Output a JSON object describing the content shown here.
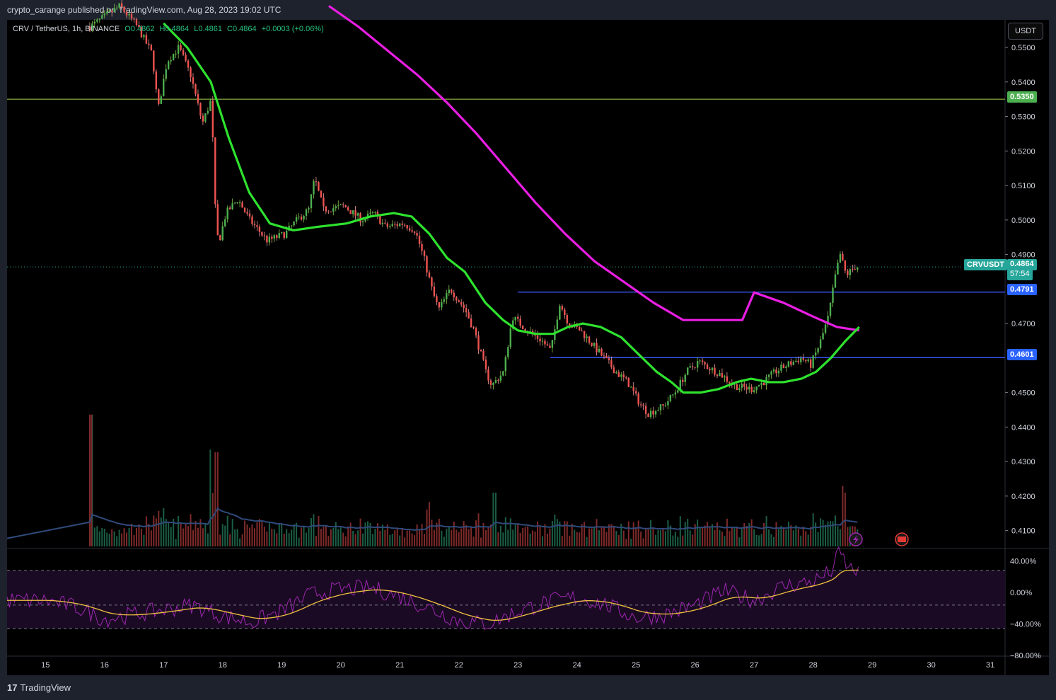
{
  "header": {
    "publisher_line": "crypto_carange published on TradingView.com, Aug 28, 2023 19:02 UTC"
  },
  "legend": {
    "symbol": "CRV / TetherUS, 1h, BINANCE",
    "open": "O0.4862",
    "high": "H0.4864",
    "low": "L0.4861",
    "close": "C0.4864",
    "change": "+0.0003 (+0.06%)"
  },
  "currency_button": "USDT",
  "branding": {
    "logo_text": "TradingView"
  },
  "price_tags": {
    "symbol_label": "CRVUSDT",
    "last_price": "0.4864",
    "countdown": "57:54",
    "level_top": "0.5350",
    "level_mid": "0.4791",
    "level_low": "0.4601"
  },
  "chart_data": [
    {
      "type": "candlestick",
      "symbol": "CRV / TetherUS",
      "interval": "1h",
      "exchange": "BINANCE",
      "x_ticks": [
        "15",
        "16",
        "17",
        "18",
        "19",
        "20",
        "21",
        "22",
        "23",
        "24",
        "25",
        "26",
        "27",
        "28",
        "29",
        "30",
        "31"
      ],
      "x_range_days": [
        14.35,
        31.25
      ],
      "ylim": [
        0.405,
        0.558
      ],
      "y_ticks": [
        "0.5500",
        "0.5400",
        "0.5300",
        "0.5200",
        "0.5100",
        "0.5000",
        "0.4900",
        "0.4700",
        "0.4500",
        "0.4400",
        "0.4300",
        "0.4200",
        "0.4100"
      ],
      "price_path": [
        [
          15.8,
          0.556
        ],
        [
          16.3,
          0.562
        ],
        [
          16.6,
          0.556
        ],
        [
          16.85,
          0.548
        ],
        [
          16.95,
          0.532
        ],
        [
          17.1,
          0.546
        ],
        [
          17.3,
          0.55
        ],
        [
          17.5,
          0.542
        ],
        [
          17.7,
          0.528
        ],
        [
          17.85,
          0.535
        ],
        [
          17.92,
          0.502
        ],
        [
          17.97,
          0.493
        ],
        [
          18.1,
          0.502
        ],
        [
          18.3,
          0.506
        ],
        [
          18.5,
          0.5
        ],
        [
          18.8,
          0.494
        ],
        [
          19.1,
          0.496
        ],
        [
          19.3,
          0.5
        ],
        [
          19.5,
          0.503
        ],
        [
          19.6,
          0.512
        ],
        [
          19.75,
          0.503
        ],
        [
          20.1,
          0.504
        ],
        [
          20.4,
          0.5
        ],
        [
          20.6,
          0.502
        ],
        [
          20.8,
          0.498
        ],
        [
          21.1,
          0.499
        ],
        [
          21.3,
          0.497
        ],
        [
          21.45,
          0.489
        ],
        [
          21.6,
          0.479
        ],
        [
          21.7,
          0.474
        ],
        [
          21.9,
          0.48
        ],
        [
          22.15,
          0.474
        ],
        [
          22.3,
          0.468
        ],
        [
          22.5,
          0.456
        ],
        [
          22.6,
          0.452
        ],
        [
          22.8,
          0.456
        ],
        [
          22.95,
          0.472
        ],
        [
          23.2,
          0.468
        ],
        [
          23.45,
          0.465
        ],
        [
          23.6,
          0.462
        ],
        [
          23.75,
          0.476
        ],
        [
          23.9,
          0.47
        ],
        [
          24.1,
          0.468
        ],
        [
          24.3,
          0.464
        ],
        [
          24.5,
          0.46
        ],
        [
          24.7,
          0.456
        ],
        [
          24.9,
          0.453
        ],
        [
          25.1,
          0.447
        ],
        [
          25.25,
          0.444
        ],
        [
          25.5,
          0.446
        ],
        [
          25.7,
          0.45
        ],
        [
          25.9,
          0.456
        ],
        [
          26.1,
          0.459
        ],
        [
          26.3,
          0.457
        ],
        [
          26.5,
          0.455
        ],
        [
          26.7,
          0.452
        ],
        [
          27.0,
          0.451
        ],
        [
          27.2,
          0.453
        ],
        [
          27.4,
          0.456
        ],
        [
          27.6,
          0.458
        ],
        [
          27.85,
          0.46
        ],
        [
          28.0,
          0.458
        ],
        [
          28.15,
          0.464
        ],
        [
          28.3,
          0.472
        ],
        [
          28.42,
          0.484
        ],
        [
          28.5,
          0.49
        ],
        [
          28.6,
          0.484
        ],
        [
          28.75,
          0.4864
        ]
      ],
      "ema_fast_green": [
        [
          17.0,
          0.557
        ],
        [
          17.4,
          0.55
        ],
        [
          17.8,
          0.54
        ],
        [
          18.1,
          0.524
        ],
        [
          18.45,
          0.508
        ],
        [
          18.8,
          0.499
        ],
        [
          19.2,
          0.497
        ],
        [
          19.6,
          0.498
        ],
        [
          20.1,
          0.499
        ],
        [
          20.5,
          0.501
        ],
        [
          20.9,
          0.502
        ],
        [
          21.2,
          0.501
        ],
        [
          21.5,
          0.496
        ],
        [
          21.8,
          0.489
        ],
        [
          22.1,
          0.485
        ],
        [
          22.45,
          0.476
        ],
        [
          22.75,
          0.471
        ],
        [
          23.0,
          0.468
        ],
        [
          23.3,
          0.467
        ],
        [
          23.6,
          0.467
        ],
        [
          23.85,
          0.469
        ],
        [
          24.1,
          0.47
        ],
        [
          24.4,
          0.469
        ],
        [
          24.75,
          0.466
        ],
        [
          25.05,
          0.461
        ],
        [
          25.35,
          0.456
        ],
        [
          25.6,
          0.453
        ],
        [
          25.8,
          0.45
        ],
        [
          26.1,
          0.45
        ],
        [
          26.4,
          0.451
        ],
        [
          26.7,
          0.453
        ],
        [
          26.95,
          0.454
        ],
        [
          27.25,
          0.453
        ],
        [
          27.5,
          0.453
        ],
        [
          27.8,
          0.454
        ],
        [
          28.05,
          0.456
        ],
        [
          28.3,
          0.46
        ],
        [
          28.55,
          0.465
        ],
        [
          28.78,
          0.469
        ]
      ],
      "ema_slow_magenta": [
        [
          19.8,
          0.562
        ],
        [
          20.3,
          0.556
        ],
        [
          20.8,
          0.549
        ],
        [
          21.3,
          0.542
        ],
        [
          21.8,
          0.534
        ],
        [
          22.3,
          0.525
        ],
        [
          22.8,
          0.515
        ],
        [
          23.3,
          0.505
        ],
        [
          23.8,
          0.496
        ],
        [
          24.3,
          0.488
        ],
        [
          24.8,
          0.482
        ],
        [
          25.3,
          0.476
        ],
        [
          25.8,
          0.471
        ],
        [
          26.3,
          0.471
        ],
        [
          26.8,
          0.471
        ],
        [
          27.0,
          0.479
        ],
        [
          27.5,
          0.476
        ],
        [
          28.0,
          0.472
        ],
        [
          28.4,
          0.469
        ],
        [
          28.78,
          0.468
        ]
      ],
      "horizontal_levels": [
        {
          "price": 0.535,
          "color": "#7a9a3a"
        },
        {
          "price": 0.4791,
          "color": "#3d5afe",
          "start_day": 23.0
        },
        {
          "price": 0.4601,
          "color": "#3d5afe",
          "start_day": 23.55
        }
      ]
    },
    {
      "type": "bar",
      "name": "volume",
      "note": "relative volume per hourly candle, normalized 0-1",
      "spikes": [
        [
          15.78,
          0.98
        ],
        [
          17.8,
          0.72
        ],
        [
          17.9,
          0.7
        ],
        [
          28.5,
          0.45
        ],
        [
          28.55,
          0.4
        ],
        [
          21.5,
          0.33
        ],
        [
          22.6,
          0.4
        ]
      ]
    },
    {
      "type": "line",
      "name": "oscillator",
      "y_ticks": [
        "40.00%",
        "0.00%",
        "−40.00%",
        "−80.00%"
      ],
      "ylim": [
        -80,
        55
      ],
      "bands": [
        28,
        -16,
        -46
      ],
      "values_path": [
        [
          14.35,
          -10
        ],
        [
          15.0,
          -10
        ],
        [
          15.5,
          -18
        ],
        [
          16.0,
          -34
        ],
        [
          16.5,
          -28
        ],
        [
          17.0,
          -22
        ],
        [
          17.5,
          -16
        ],
        [
          18.0,
          -30
        ],
        [
          18.5,
          -38
        ],
        [
          19.0,
          -24
        ],
        [
          19.5,
          -2
        ],
        [
          20.0,
          4
        ],
        [
          20.5,
          6
        ],
        [
          21.0,
          -5
        ],
        [
          21.5,
          -20
        ],
        [
          22.0,
          -36
        ],
        [
          22.5,
          -40
        ],
        [
          23.0,
          -24
        ],
        [
          23.5,
          -12
        ],
        [
          24.0,
          -6
        ],
        [
          24.5,
          -16
        ],
        [
          25.0,
          -32
        ],
        [
          25.5,
          -28
        ],
        [
          26.0,
          -16
        ],
        [
          26.5,
          2
        ],
        [
          27.0,
          -10
        ],
        [
          27.5,
          8
        ],
        [
          28.0,
          14
        ],
        [
          28.3,
          26
        ],
        [
          28.45,
          52
        ],
        [
          28.6,
          30
        ],
        [
          28.78,
          28
        ]
      ]
    }
  ]
}
